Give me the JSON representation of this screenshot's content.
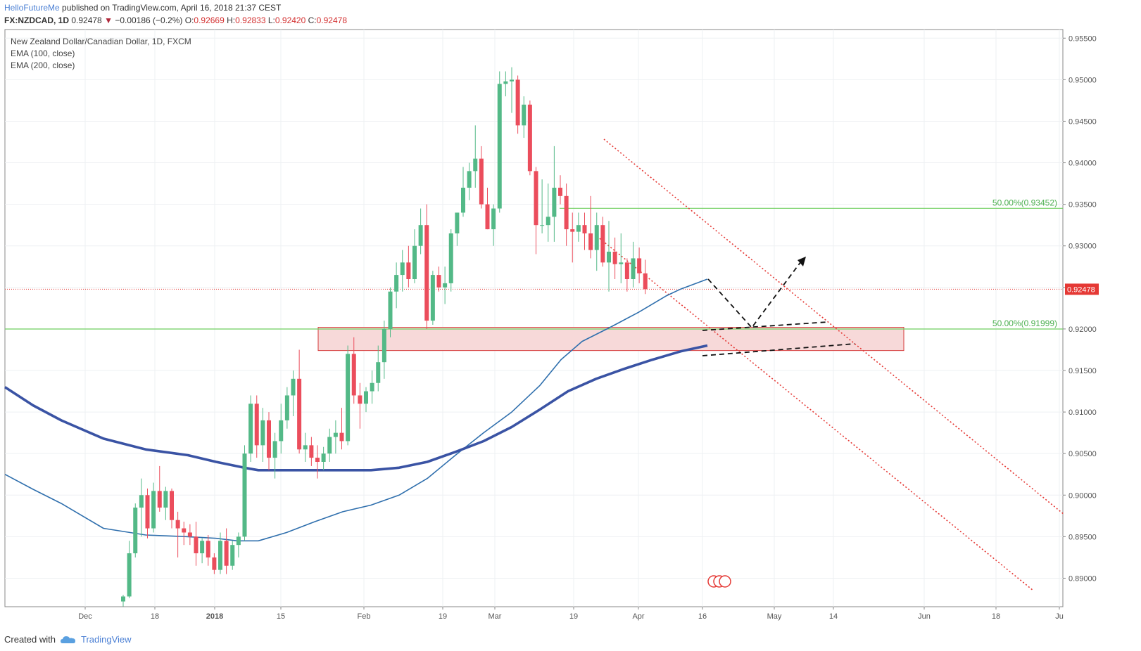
{
  "header": {
    "author": "HelloFutureMe",
    "published": "published on TradingView.com, April 16, 2018 21:37 CEST",
    "symbol": "FX:NZDCAD, 1D",
    "last": "0.92478",
    "change_arrow": "▼",
    "change": "−0.00186 (−0.2%)",
    "o_label": "O:",
    "o": "0.92669",
    "h_label": "H:",
    "h": "0.92833",
    "l_label": "L:",
    "l": "0.92420",
    "c_label": "C:",
    "c": "0.92478"
  },
  "legend": {
    "title": "New Zealand Dollar/Canadian Dollar, 1D, FXCM",
    "ema1": "EMA (100, close)",
    "ema2": "EMA (200, close)"
  },
  "footer": {
    "created": "Created with",
    "brand": "TradingView",
    "logo_icon": "tradingview-cloud-icon"
  },
  "colors": {
    "up": "#53b987",
    "down": "#eb4d5c",
    "ema": "#2f6fad",
    "ema200": "#3a53a4",
    "fib": "#6fcf5f",
    "zone_fill": "#f7d9d9",
    "zone_stroke": "#d63a3a",
    "channel": "#e53935",
    "price_line": "#e53935"
  },
  "chart_data": {
    "type": "candlestick",
    "ylim": [
      0.8875,
      0.956
    ],
    "y_ticks": [
      "0.95500",
      "0.95000",
      "0.94500",
      "0.94000",
      "0.93500",
      "0.93000",
      "0.92500",
      "0.92000",
      "0.91500",
      "0.91000",
      "0.90500",
      "0.90000",
      "0.89500",
      "0.89000"
    ],
    "x_ticks": [
      "Dec",
      "18",
      "2018",
      "15",
      "Feb",
      "19",
      "Mar",
      "19",
      "Apr",
      "16",
      "May",
      "14",
      "Jun",
      "18",
      "Ju"
    ],
    "last_price_label": "0.92478",
    "fib_levels": [
      {
        "label": "50.00%(0.93452)",
        "value": 0.93452
      },
      {
        "label": "50.00%(0.91999)",
        "value": 0.91999
      }
    ],
    "support_zone": [
      0.9174,
      0.9202
    ],
    "candles": [
      [
        0.8872,
        0.888,
        0.8866,
        0.8878
      ],
      [
        0.8878,
        0.8945,
        0.8876,
        0.893
      ],
      [
        0.893,
        0.899,
        0.8925,
        0.8985
      ],
      [
        0.8985,
        0.902,
        0.895,
        0.9
      ],
      [
        0.9,
        0.9008,
        0.8948,
        0.896
      ],
      [
        0.896,
        0.9015,
        0.8955,
        0.9005
      ],
      [
        0.9005,
        0.9035,
        0.898,
        0.8985
      ],
      [
        0.8985,
        0.901,
        0.897,
        0.9005
      ],
      [
        0.9005,
        0.9008,
        0.896,
        0.897
      ],
      [
        0.897,
        0.898,
        0.8925,
        0.896
      ],
      [
        0.896,
        0.8968,
        0.894,
        0.8955
      ],
      [
        0.8955,
        0.8965,
        0.894,
        0.895
      ],
      [
        0.895,
        0.8968,
        0.8915,
        0.893
      ],
      [
        0.893,
        0.8948,
        0.8918,
        0.8945
      ],
      [
        0.8945,
        0.8952,
        0.8915,
        0.8925
      ],
      [
        0.8925,
        0.893,
        0.8905,
        0.891
      ],
      [
        0.891,
        0.8955,
        0.8905,
        0.8945
      ],
      [
        0.8945,
        0.896,
        0.8905,
        0.8915
      ],
      [
        0.8915,
        0.8945,
        0.891,
        0.894
      ],
      [
        0.894,
        0.8955,
        0.8925,
        0.895
      ],
      [
        0.895,
        0.906,
        0.8945,
        0.905
      ],
      [
        0.905,
        0.912,
        0.904,
        0.911
      ],
      [
        0.911,
        0.912,
        0.9045,
        0.906
      ],
      [
        0.906,
        0.9105,
        0.904,
        0.909
      ],
      [
        0.909,
        0.91,
        0.903,
        0.9045
      ],
      [
        0.9045,
        0.9075,
        0.902,
        0.9065
      ],
      [
        0.9065,
        0.911,
        0.905,
        0.909
      ],
      [
        0.909,
        0.913,
        0.908,
        0.912
      ],
      [
        0.912,
        0.915,
        0.9095,
        0.914
      ],
      [
        0.914,
        0.9175,
        0.905,
        0.9055
      ],
      [
        0.9055,
        0.9075,
        0.904,
        0.906
      ],
      [
        0.906,
        0.907,
        0.9035,
        0.9045
      ],
      [
        0.9045,
        0.906,
        0.902,
        0.904
      ],
      [
        0.904,
        0.9058,
        0.903,
        0.905
      ],
      [
        0.905,
        0.908,
        0.904,
        0.907
      ],
      [
        0.907,
        0.909,
        0.905,
        0.9075
      ],
      [
        0.9075,
        0.9105,
        0.9055,
        0.9065
      ],
      [
        0.9065,
        0.918,
        0.906,
        0.917
      ],
      [
        0.917,
        0.919,
        0.911,
        0.912
      ],
      [
        0.912,
        0.9135,
        0.908,
        0.911
      ],
      [
        0.911,
        0.913,
        0.91,
        0.9125
      ],
      [
        0.9125,
        0.915,
        0.911,
        0.9135
      ],
      [
        0.9135,
        0.918,
        0.9125,
        0.916
      ],
      [
        0.916,
        0.921,
        0.914,
        0.92
      ],
      [
        0.92,
        0.925,
        0.919,
        0.9245
      ],
      [
        0.9245,
        0.928,
        0.9225,
        0.9265
      ],
      [
        0.9265,
        0.9295,
        0.9245,
        0.928
      ],
      [
        0.928,
        0.93,
        0.925,
        0.926
      ],
      [
        0.926,
        0.932,
        0.9255,
        0.93
      ],
      [
        0.93,
        0.9345,
        0.929,
        0.9325
      ],
      [
        0.9325,
        0.935,
        0.92,
        0.921
      ],
      [
        0.921,
        0.927,
        0.9205,
        0.9265
      ],
      [
        0.9265,
        0.9275,
        0.9245,
        0.925
      ],
      [
        0.925,
        0.9275,
        0.923,
        0.9255
      ],
      [
        0.9255,
        0.932,
        0.9245,
        0.9315
      ],
      [
        0.9315,
        0.934,
        0.93,
        0.934
      ],
      [
        0.934,
        0.9395,
        0.9335,
        0.937
      ],
      [
        0.937,
        0.94,
        0.9355,
        0.939
      ],
      [
        0.939,
        0.9445,
        0.937,
        0.9405
      ],
      [
        0.9405,
        0.942,
        0.9345,
        0.935
      ],
      [
        0.935,
        0.937,
        0.932,
        0.932
      ],
      [
        0.932,
        0.935,
        0.93,
        0.9345
      ],
      [
        0.9345,
        0.951,
        0.934,
        0.9495
      ],
      [
        0.9495,
        0.951,
        0.948,
        0.9498
      ],
      [
        0.9498,
        0.9515,
        0.946,
        0.95
      ],
      [
        0.95,
        0.9505,
        0.9435,
        0.9445
      ],
      [
        0.9445,
        0.948,
        0.943,
        0.947
      ],
      [
        0.947,
        0.9475,
        0.9385,
        0.939
      ],
      [
        0.939,
        0.9395,
        0.929,
        0.9325
      ],
      [
        0.9325,
        0.938,
        0.9315,
        0.9325
      ],
      [
        0.9325,
        0.9375,
        0.9305,
        0.9335
      ],
      [
        0.9335,
        0.942,
        0.9305,
        0.937
      ],
      [
        0.937,
        0.9385,
        0.935,
        0.936
      ],
      [
        0.936,
        0.9375,
        0.93,
        0.932
      ],
      [
        0.932,
        0.934,
        0.928,
        0.9317
      ],
      [
        0.9317,
        0.934,
        0.9305,
        0.9325
      ],
      [
        0.9325,
        0.934,
        0.9295,
        0.9315
      ],
      [
        0.9315,
        0.936,
        0.9285,
        0.9295
      ],
      [
        0.9295,
        0.934,
        0.927,
        0.9325
      ],
      [
        0.9325,
        0.9335,
        0.9275,
        0.928
      ],
      [
        0.928,
        0.933,
        0.9245,
        0.9293
      ],
      [
        0.9293,
        0.931,
        0.926,
        0.9278
      ],
      [
        0.9278,
        0.9315,
        0.9255,
        0.928
      ],
      [
        0.928,
        0.9285,
        0.9245,
        0.926
      ],
      [
        0.926,
        0.9305,
        0.925,
        0.9285
      ],
      [
        0.9285,
        0.9298,
        0.9255,
        0.9267
      ],
      [
        0.92669,
        0.92833,
        0.9242,
        0.92478
      ]
    ],
    "ema100": [
      [
        0,
        0.9025
      ],
      [
        40,
        0.9007
      ],
      [
        80,
        0.899
      ],
      [
        140,
        0.896
      ],
      [
        200,
        0.8952
      ],
      [
        260,
        0.895
      ],
      [
        300,
        0.8948
      ],
      [
        330,
        0.8945
      ],
      [
        360,
        0.8945
      ],
      [
        400,
        0.8955
      ],
      [
        440,
        0.8968
      ],
      [
        480,
        0.898
      ],
      [
        520,
        0.8988
      ],
      [
        560,
        0.9
      ],
      [
        600,
        0.902
      ],
      [
        640,
        0.9048
      ],
      [
        680,
        0.9075
      ],
      [
        720,
        0.91
      ],
      [
        760,
        0.9132
      ],
      [
        790,
        0.9163
      ],
      [
        820,
        0.9185
      ],
      [
        860,
        0.9202
      ],
      [
        900,
        0.922
      ],
      [
        940,
        0.924
      ],
      [
        960,
        0.9248
      ],
      [
        998,
        0.926
      ]
    ],
    "ema200": [
      [
        0,
        0.913
      ],
      [
        40,
        0.9108
      ],
      [
        80,
        0.909
      ],
      [
        140,
        0.9068
      ],
      [
        200,
        0.9055
      ],
      [
        260,
        0.9048
      ],
      [
        300,
        0.904
      ],
      [
        340,
        0.9033
      ],
      [
        360,
        0.903
      ],
      [
        400,
        0.903
      ],
      [
        440,
        0.903
      ],
      [
        480,
        0.903
      ],
      [
        520,
        0.903
      ],
      [
        560,
        0.9033
      ],
      [
        600,
        0.904
      ],
      [
        640,
        0.9052
      ],
      [
        680,
        0.9065
      ],
      [
        720,
        0.9082
      ],
      [
        760,
        0.9103
      ],
      [
        800,
        0.9125
      ],
      [
        840,
        0.914
      ],
      [
        880,
        0.9152
      ],
      [
        920,
        0.9163
      ],
      [
        960,
        0.9173
      ],
      [
        998,
        0.918
      ]
    ]
  }
}
